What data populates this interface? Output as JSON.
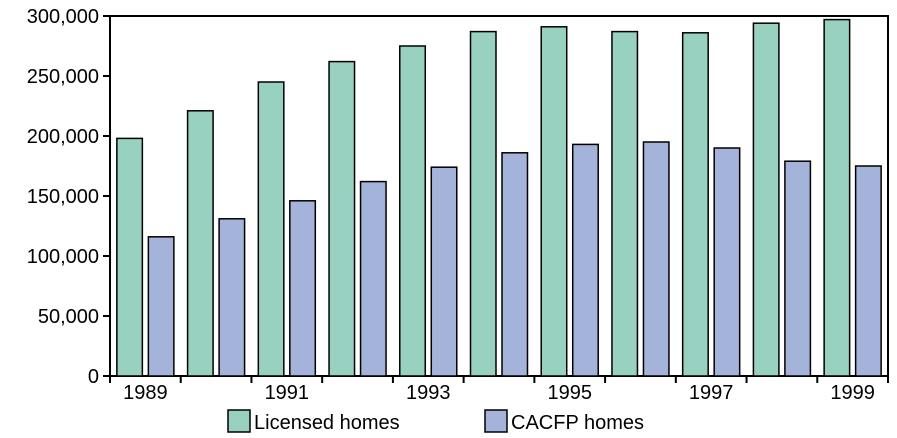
{
  "chart_data": {
    "type": "bar",
    "categories": [
      "1989",
      "1990",
      "1991",
      "1992",
      "1993",
      "1994",
      "1995",
      "1996",
      "1997",
      "1998",
      "1999"
    ],
    "x_tick_labels": [
      "1989",
      "",
      "1991",
      "",
      "1993",
      "",
      "1995",
      "",
      "1997",
      "",
      "1999"
    ],
    "y_ticks": [
      0,
      50000,
      100000,
      150000,
      200000,
      250000,
      300000
    ],
    "y_tick_labels": [
      "0",
      "50,000",
      "100,000",
      "150,000",
      "200,000",
      "250,000",
      "300,000"
    ],
    "ylim": [
      0,
      300000
    ],
    "legend_position": "bottom",
    "series": [
      {
        "name": "Licensed homes",
        "color": "#99d1c1",
        "values": [
          198000,
          221000,
          245000,
          262000,
          275000,
          287000,
          291000,
          287000,
          286000,
          294000,
          297000
        ]
      },
      {
        "name": "CACFP homes",
        "color": "#a3b3d9",
        "values": [
          116000,
          131000,
          146000,
          162000,
          174000,
          186000,
          193000,
          195000,
          190000,
          179000,
          175000
        ]
      }
    ]
  }
}
